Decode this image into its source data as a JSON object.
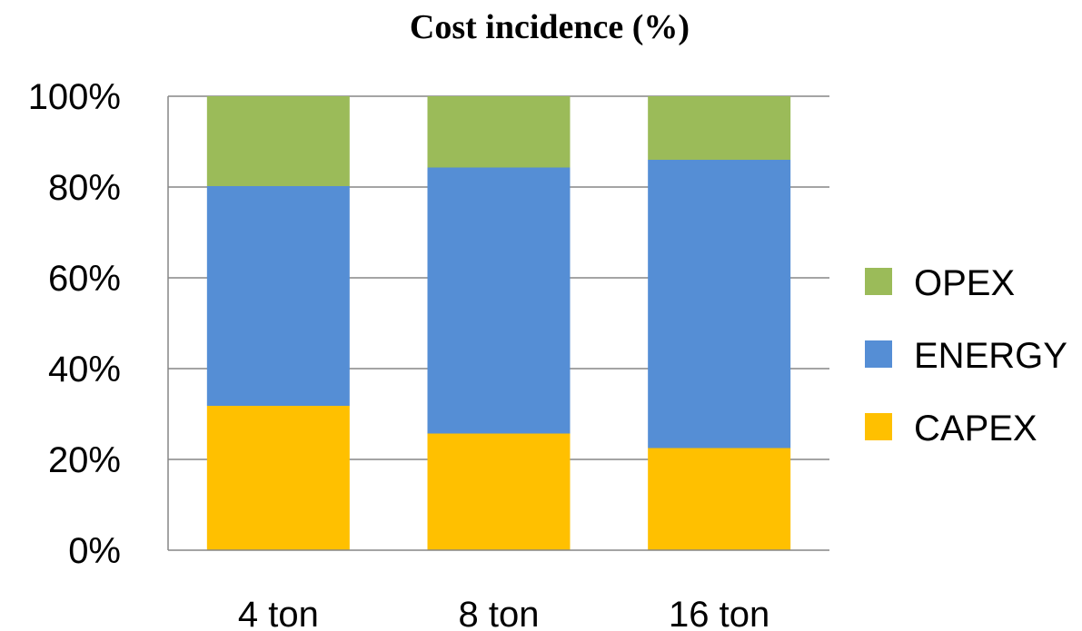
{
  "chart_data": {
    "type": "bar",
    "stacked": true,
    "title": "Cost incidence (%)",
    "xlabel": "",
    "ylabel": "",
    "categories": [
      "4 ton",
      "8 ton",
      "16 ton"
    ],
    "series": [
      {
        "name": "CAPEX",
        "color": "#FFC000",
        "values": [
          31.8,
          25.7,
          22.5
        ]
      },
      {
        "name": "ENERGY",
        "color": "#558ED5",
        "values": [
          48.4,
          58.6,
          63.5
        ]
      },
      {
        "name": "OPEX",
        "color": "#9BBB59",
        "values": [
          19.8,
          15.7,
          14.0
        ]
      }
    ],
    "ylim": [
      0,
      100
    ],
    "yticks": [
      0,
      20,
      40,
      60,
      80,
      100
    ],
    "ytick_labels": [
      "0%",
      "20%",
      "40%",
      "60%",
      "80%",
      "100%"
    ],
    "grid": true,
    "gridline_color": "#868686",
    "legend": {
      "position": "right",
      "order": [
        "OPEX",
        "ENERGY",
        "CAPEX"
      ]
    }
  }
}
